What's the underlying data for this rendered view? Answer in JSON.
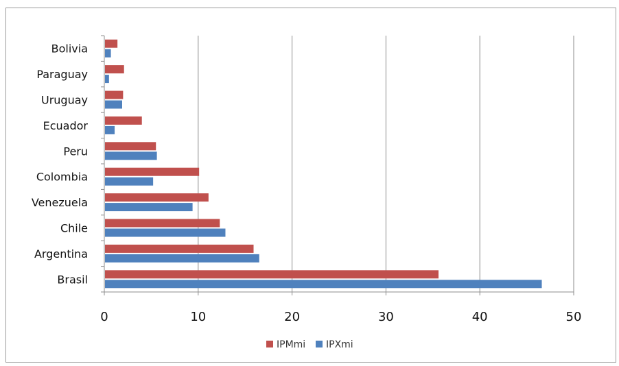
{
  "chart_data": {
    "type": "bar",
    "orientation": "horizontal",
    "categories": [
      "Bolivia",
      "Paraguay",
      "Uruguay",
      "Ecuador",
      "Peru",
      "Colombia",
      "Venezuela",
      "Chile",
      "Argentina",
      "Brasil"
    ],
    "series": [
      {
        "name": "IPMmi",
        "color": "#c0504d",
        "values": [
          1.4,
          2.1,
          2.0,
          4.0,
          5.5,
          10.1,
          11.1,
          12.3,
          15.9,
          35.6
        ]
      },
      {
        "name": "IPXmi",
        "color": "#4f81bd",
        "values": [
          0.7,
          0.5,
          1.9,
          1.1,
          5.6,
          5.2,
          9.4,
          12.9,
          16.5,
          46.6
        ]
      }
    ],
    "title": "",
    "xlabel": "",
    "ylabel": "",
    "xlim": [
      0,
      50
    ],
    "xticks": [
      0,
      10,
      20,
      30,
      40,
      50
    ],
    "grid": "vertical",
    "legend": "bottom"
  }
}
